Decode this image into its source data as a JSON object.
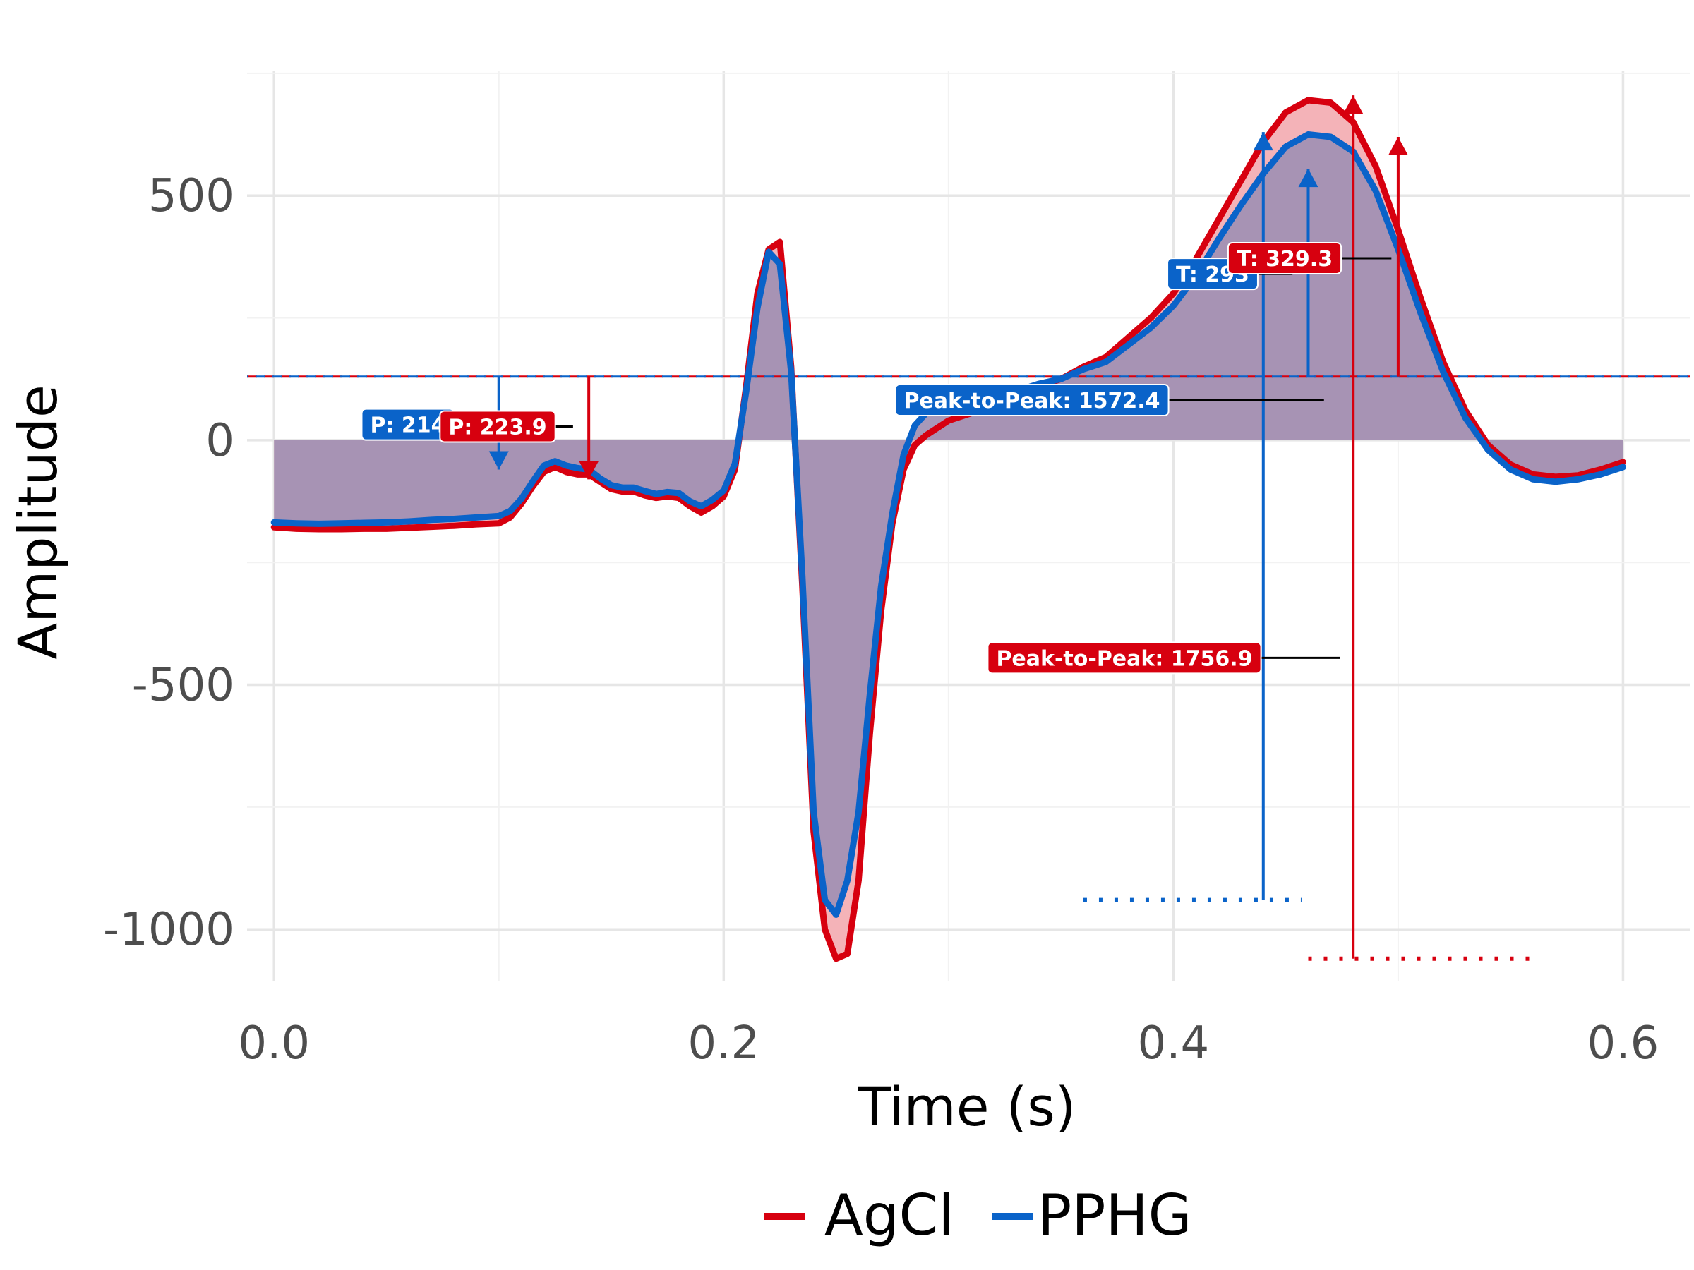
{
  "chart_data": {
    "type": "line",
    "title": "",
    "xlabel": "Time (s)",
    "ylabel": "Amplitude",
    "xlim": [
      -0.012,
      0.63
    ],
    "ylim": [
      -1105,
      770
    ],
    "x_ticks": [
      0.0,
      0.2,
      0.4,
      0.6
    ],
    "x_tick_labels": [
      "0.0",
      "0.2",
      "0.4",
      "0.6"
    ],
    "y_ticks": [
      -1000,
      -500,
      0,
      500
    ],
    "y_tick_labels": [
      "-1000",
      "-500",
      "0",
      "500"
    ],
    "grid": true,
    "legend_position": "bottom",
    "baseline": 130,
    "series": [
      {
        "name": "AgCl",
        "color": "#d7000f",
        "x": [
          0,
          0.01,
          0.02,
          0.03,
          0.04,
          0.05,
          0.06,
          0.07,
          0.08,
          0.09,
          0.1,
          0.105,
          0.11,
          0.115,
          0.12,
          0.125,
          0.13,
          0.135,
          0.14,
          0.145,
          0.15,
          0.155,
          0.16,
          0.165,
          0.17,
          0.175,
          0.18,
          0.185,
          0.19,
          0.195,
          0.2,
          0.205,
          0.21,
          0.215,
          0.22,
          0.225,
          0.23,
          0.235,
          0.24,
          0.245,
          0.25,
          0.255,
          0.26,
          0.265,
          0.27,
          0.275,
          0.28,
          0.285,
          0.29,
          0.3,
          0.31,
          0.32,
          0.33,
          0.34,
          0.35,
          0.36,
          0.37,
          0.38,
          0.39,
          0.4,
          0.41,
          0.42,
          0.43,
          0.44,
          0.45,
          0.46,
          0.47,
          0.48,
          0.49,
          0.5,
          0.51,
          0.52,
          0.53,
          0.54,
          0.55,
          0.56,
          0.57,
          0.58,
          0.59,
          0.6
        ],
        "y": [
          -178,
          -181,
          -182,
          -182,
          -181,
          -181,
          -179,
          -177,
          -175,
          -172,
          -170,
          -158,
          -130,
          -95,
          -65,
          -55,
          -65,
          -70,
          -70,
          -85,
          -100,
          -105,
          -105,
          -113,
          -118,
          -115,
          -118,
          -135,
          -148,
          -135,
          -115,
          -60,
          110,
          300,
          390,
          405,
          150,
          -300,
          -800,
          -1000,
          -1060,
          -1050,
          -900,
          -600,
          -350,
          -170,
          -60,
          -10,
          10,
          40,
          55,
          70,
          90,
          110,
          125,
          150,
          170,
          210,
          250,
          300,
          370,
          450,
          530,
          610,
          670,
          695,
          690,
          650,
          560,
          430,
          290,
          160,
          60,
          -10,
          -50,
          -70,
          -75,
          -72,
          -60,
          -45
        ]
      },
      {
        "name": "PPHG",
        "color": "#0a63c9",
        "x": [
          0,
          0.01,
          0.02,
          0.03,
          0.04,
          0.05,
          0.06,
          0.07,
          0.08,
          0.09,
          0.1,
          0.105,
          0.11,
          0.115,
          0.12,
          0.125,
          0.13,
          0.135,
          0.14,
          0.145,
          0.15,
          0.155,
          0.16,
          0.165,
          0.17,
          0.175,
          0.18,
          0.185,
          0.19,
          0.195,
          0.2,
          0.205,
          0.21,
          0.215,
          0.22,
          0.225,
          0.23,
          0.235,
          0.24,
          0.245,
          0.25,
          0.255,
          0.26,
          0.265,
          0.27,
          0.275,
          0.28,
          0.285,
          0.29,
          0.3,
          0.31,
          0.32,
          0.33,
          0.34,
          0.35,
          0.36,
          0.37,
          0.38,
          0.39,
          0.4,
          0.41,
          0.42,
          0.43,
          0.44,
          0.45,
          0.46,
          0.47,
          0.48,
          0.49,
          0.5,
          0.51,
          0.52,
          0.53,
          0.54,
          0.55,
          0.56,
          0.57,
          0.58,
          0.59,
          0.6
        ],
        "y": [
          -168,
          -170,
          -171,
          -170,
          -169,
          -168,
          -166,
          -163,
          -161,
          -158,
          -155,
          -145,
          -120,
          -85,
          -52,
          -43,
          -52,
          -57,
          -60,
          -78,
          -92,
          -97,
          -97,
          -104,
          -110,
          -106,
          -108,
          -125,
          -135,
          -122,
          -103,
          -48,
          100,
          270,
          385,
          360,
          140,
          -280,
          -760,
          -940,
          -970,
          -900,
          -760,
          -520,
          -300,
          -150,
          -30,
          30,
          55,
          65,
          75,
          90,
          100,
          115,
          125,
          145,
          160,
          195,
          230,
          275,
          335,
          410,
          480,
          545,
          600,
          625,
          620,
          590,
          510,
          390,
          260,
          140,
          45,
          -20,
          -60,
          -80,
          -85,
          -80,
          -70,
          -55
        ]
      }
    ],
    "annotations": [
      {
        "label": "P: 214",
        "color": "#0a63c9"
      },
      {
        "label": "P: 223.9",
        "color": "#d7000f"
      },
      {
        "label": "T: 293",
        "color": "#0a63c9"
      },
      {
        "label": "T: 329.3",
        "color": "#d7000f"
      },
      {
        "label": "Peak-to-Peak: 1572.4",
        "color": "#0a63c9"
      },
      {
        "label": "Peak-to-Peak: 1756.9",
        "color": "#d7000f"
      }
    ],
    "fill_colors": {
      "AgCl": "#f4b3b8",
      "PPHG": "#9f90b3"
    }
  }
}
